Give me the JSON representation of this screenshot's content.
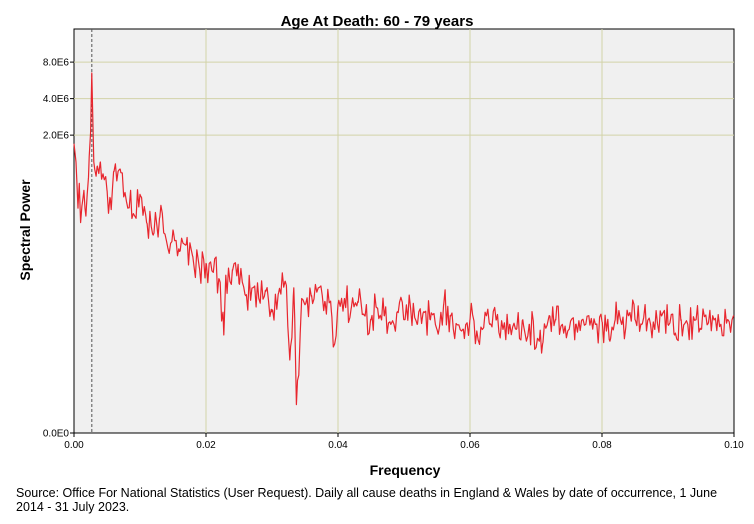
{
  "chart_data": {
    "type": "line",
    "title": "Age At Death: 60 - 79 years",
    "xlabel": "Frequency",
    "ylabel": "Spectral Power",
    "y_scale": "log",
    "xlim": [
      0.0,
      0.1
    ],
    "x_ticks": [
      0.0,
      0.02,
      0.04,
      0.06,
      0.08,
      0.1
    ],
    "x_tick_labels": [
      "0.00",
      "0.02",
      "0.04",
      "0.06",
      "0.08",
      "0.10"
    ],
    "y_ticks": [
      0,
      2000000,
      4000000,
      8000000
    ],
    "y_tick_labels": [
      "0.0E0",
      "2.0E6",
      "4.0E6",
      "8.0E6"
    ],
    "grid": true,
    "reference_line_x": 0.0027,
    "series": [
      {
        "color": "#e8262e",
        "x_start": 0.0,
        "x_step": 0.000209,
        "points": 479,
        "keypoints": [
          [
            0.0,
            1700000
          ],
          [
            0.0003,
            1200000
          ],
          [
            0.0006,
            500000
          ],
          [
            0.0008,
            800000
          ],
          [
            0.001,
            380000
          ],
          [
            0.0012,
            520000
          ],
          [
            0.0015,
            700000
          ],
          [
            0.0018,
            430000
          ],
          [
            0.002,
            650000
          ],
          [
            0.0022,
            900000
          ],
          [
            0.0027,
            6500000
          ],
          [
            0.003,
            1200000
          ],
          [
            0.0035,
            1100000
          ],
          [
            0.004,
            1200000
          ],
          [
            0.0045,
            900000
          ],
          [
            0.005,
            700000
          ],
          [
            0.0055,
            600000
          ],
          [
            0.006,
            1000000
          ],
          [
            0.007,
            1050000
          ],
          [
            0.008,
            550000
          ],
          [
            0.009,
            450000
          ],
          [
            0.01,
            650000
          ],
          [
            0.011,
            380000
          ],
          [
            0.012,
            300000
          ],
          [
            0.013,
            420000
          ],
          [
            0.014,
            270000
          ],
          [
            0.015,
            330000
          ],
          [
            0.016,
            220000
          ],
          [
            0.017,
            250000
          ],
          [
            0.018,
            200000
          ],
          [
            0.019,
            160000
          ],
          [
            0.02,
            175000
          ],
          [
            0.021,
            150000
          ],
          [
            0.022,
            130000
          ],
          [
            0.0227,
            45000
          ],
          [
            0.023,
            140000
          ],
          [
            0.024,
            155000
          ],
          [
            0.025,
            120000
          ],
          [
            0.026,
            95000
          ],
          [
            0.027,
            110000
          ],
          [
            0.028,
            90000
          ],
          [
            0.029,
            105000
          ],
          [
            0.03,
            70000
          ],
          [
            0.031,
            100000
          ],
          [
            0.032,
            125000
          ],
          [
            0.0327,
            28000
          ],
          [
            0.0333,
            110000
          ],
          [
            0.0337,
            12000
          ],
          [
            0.0345,
            90000
          ],
          [
            0.035,
            80000
          ],
          [
            0.036,
            95000
          ],
          [
            0.037,
            110000
          ],
          [
            0.038,
            85000
          ],
          [
            0.039,
            70000
          ],
          [
            0.0395,
            38000
          ],
          [
            0.04,
            80000
          ],
          [
            0.041,
            90000
          ],
          [
            0.042,
            75000
          ],
          [
            0.043,
            85000
          ],
          [
            0.044,
            65000
          ],
          [
            0.045,
            60000
          ],
          [
            0.046,
            75000
          ],
          [
            0.047,
            65000
          ],
          [
            0.048,
            55000
          ],
          [
            0.049,
            70000
          ],
          [
            0.05,
            60000
          ],
          [
            0.051,
            75000
          ],
          [
            0.052,
            55000
          ],
          [
            0.053,
            70000
          ],
          [
            0.054,
            60000
          ],
          [
            0.055,
            50000
          ],
          [
            0.056,
            80000
          ],
          [
            0.057,
            65000
          ],
          [
            0.058,
            55000
          ],
          [
            0.059,
            50000
          ],
          [
            0.06,
            60000
          ],
          [
            0.0613,
            40000
          ],
          [
            0.0625,
            65000
          ],
          [
            0.063,
            55000
          ],
          [
            0.064,
            60000
          ],
          [
            0.065,
            50000
          ],
          [
            0.066,
            55000
          ],
          [
            0.067,
            50000
          ],
          [
            0.068,
            60000
          ],
          [
            0.069,
            55000
          ],
          [
            0.0705,
            40000
          ],
          [
            0.071,
            38000
          ],
          [
            0.072,
            65000
          ],
          [
            0.073,
            60000
          ],
          [
            0.074,
            55000
          ],
          [
            0.075,
            50000
          ],
          [
            0.076,
            55000
          ],
          [
            0.077,
            60000
          ],
          [
            0.078,
            65000
          ],
          [
            0.079,
            55000
          ],
          [
            0.08,
            58000
          ],
          [
            0.0812,
            40000
          ],
          [
            0.082,
            60000
          ],
          [
            0.083,
            55000
          ],
          [
            0.084,
            65000
          ],
          [
            0.085,
            60000
          ],
          [
            0.086,
            55000
          ],
          [
            0.087,
            60000
          ],
          [
            0.088,
            50000
          ],
          [
            0.089,
            65000
          ],
          [
            0.09,
            55000
          ],
          [
            0.091,
            45000
          ],
          [
            0.092,
            60000
          ],
          [
            0.093,
            55000
          ],
          [
            0.094,
            60000
          ],
          [
            0.095,
            50000
          ],
          [
            0.096,
            55000
          ],
          [
            0.097,
            60000
          ],
          [
            0.098,
            55000
          ],
          [
            0.099,
            60000
          ],
          [
            0.1,
            65000
          ]
        ]
      }
    ]
  },
  "source_note": "Source: Office For National Statistics (User Request). Daily all cause deaths in England & Wales by date of occurrence, 1 June 2014 - 31 July 2023."
}
